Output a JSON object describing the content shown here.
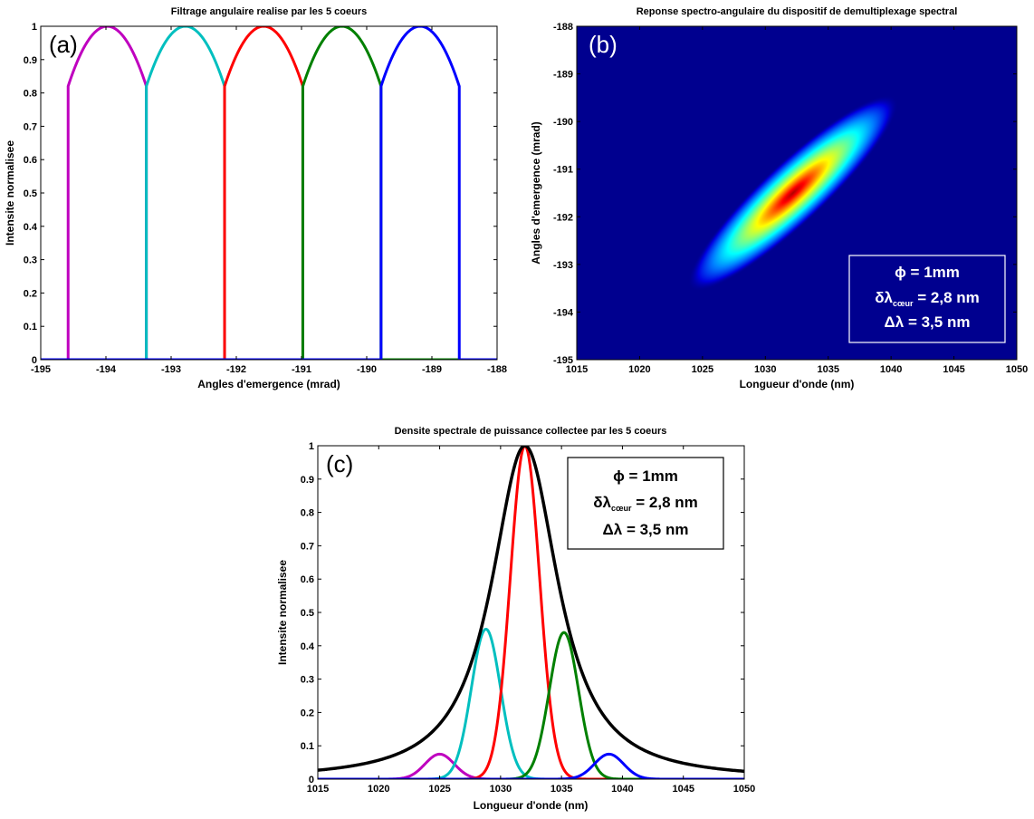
{
  "colors": {
    "magenta": "#bf00bf",
    "cyan": "#00bfbf",
    "red": "#ff0000",
    "green": "#008000",
    "blue": "#0000ff",
    "black": "#000000",
    "heatmap_bg": "#00008f"
  },
  "chart_data": [
    {
      "panel": "(a)",
      "type": "line",
      "title": "Filtrage angulaire realise par les 5 coeurs",
      "xlabel": "Angles d'emergence (mrad)",
      "ylabel": "Intensite normalisee",
      "xlim": [
        -195,
        -188
      ],
      "ylim": [
        0,
        1
      ],
      "xticks": [
        -195,
        -194,
        -193,
        -192,
        -191,
        -190,
        -189,
        -188
      ],
      "xtick_labels": [
        "-195",
        "-194",
        "-193",
        "-192",
        "-191",
        "-190",
        "-189",
        "-188"
      ],
      "yticks": [
        0,
        0.1,
        0.2,
        0.3,
        0.4,
        0.5,
        0.6,
        0.7,
        0.8,
        0.9,
        1
      ],
      "ytick_labels": [
        "0",
        "0.1",
        "0.2",
        "0.3",
        "0.4",
        "0.5",
        "0.6",
        "0.7",
        "0.8",
        "0.9",
        "1"
      ],
      "series": [
        {
          "color": "magenta",
          "x_start": -194.58,
          "x_end": -193.38,
          "peak_x": -193.98,
          "edge_value": 0.82,
          "peak_value": 1.0
        },
        {
          "color": "cyan",
          "x_start": -193.38,
          "x_end": -192.18,
          "peak_x": -192.78,
          "edge_value": 0.82,
          "peak_value": 1.0
        },
        {
          "color": "red",
          "x_start": -192.18,
          "x_end": -190.98,
          "peak_x": -191.58,
          "edge_value": 0.82,
          "peak_value": 1.0
        },
        {
          "color": "green",
          "x_start": -190.98,
          "x_end": -189.78,
          "peak_x": -190.38,
          "edge_value": 0.82,
          "peak_value": 1.0
        },
        {
          "color": "blue",
          "x_start": -189.78,
          "x_end": -188.58,
          "peak_x": -189.18,
          "edge_value": 0.82,
          "peak_value": 1.0
        }
      ],
      "grid": false
    },
    {
      "panel": "(b)",
      "type": "heatmap",
      "title": "Reponse spectro-angulaire du dispositif de demultiplexage spectral",
      "xlabel": "Longueur d'onde (nm)",
      "ylabel": "Angles d'emergence (mrad)",
      "xlim": [
        1015,
        1050
      ],
      "ylim": [
        -195,
        -188
      ],
      "xticks": [
        1015,
        1020,
        1025,
        1030,
        1035,
        1040,
        1045,
        1050
      ],
      "xtick_labels": [
        "1015",
        "1020",
        "1025",
        "1030",
        "1035",
        "1040",
        "1045",
        "1050"
      ],
      "yticks": [
        -188,
        -189,
        -190,
        -191,
        -192,
        -193,
        -194,
        -195
      ],
      "ytick_labels": [
        "-188",
        "-189",
        "-190",
        "-191",
        "-192",
        "-193",
        "-194",
        "-195"
      ],
      "peak": {
        "x": 1032.2,
        "y": -191.5
      },
      "direction": {
        "slope_mrad_per_nm": 0.245
      },
      "annotation": {
        "line1": "ϕ = 1mm",
        "line2_main": "δλ",
        "line2_sub": "cœur",
        "line2_rest": " = 2,8 nm",
        "line3": "Δλ = 3,5 nm"
      }
    },
    {
      "panel": "(c)",
      "type": "line",
      "title": "Densite spectrale de puissance collectee par les 5 coeurs",
      "xlabel": "Longueur d'onde (nm)",
      "ylabel": "Intensite normalisee",
      "xlim": [
        1015,
        1050
      ],
      "ylim": [
        0,
        1
      ],
      "xticks": [
        1015,
        1020,
        1025,
        1030,
        1035,
        1040,
        1045,
        1050
      ],
      "xtick_labels": [
        "1015",
        "1020",
        "1025",
        "1030",
        "1035",
        "1040",
        "1045",
        "1050"
      ],
      "yticks": [
        0,
        0.1,
        0.2,
        0.3,
        0.4,
        0.5,
        0.6,
        0.7,
        0.8,
        0.9,
        1
      ],
      "ytick_labels": [
        "0",
        "0.1",
        "0.2",
        "0.3",
        "0.4",
        "0.5",
        "0.6",
        "0.7",
        "0.8",
        "0.9",
        "1"
      ],
      "series": [
        {
          "color": "magenta",
          "center": 1025.0,
          "peak": 0.075,
          "sigma": 1.2
        },
        {
          "color": "cyan",
          "center": 1028.8,
          "peak": 0.45,
          "sigma": 1.2
        },
        {
          "color": "red",
          "center": 1032.0,
          "peak": 1.0,
          "sigma": 1.2
        },
        {
          "color": "green",
          "center": 1035.2,
          "peak": 0.44,
          "sigma": 1.2
        },
        {
          "color": "blue",
          "center": 1038.9,
          "peak": 0.075,
          "sigma": 1.2
        },
        {
          "color": "black",
          "center": 1032.0,
          "peak": 1.0,
          "hwhm": 3.6,
          "shape": "envelope"
        }
      ],
      "annotation": {
        "line1": "ϕ = 1mm",
        "line2_main": "δλ",
        "line2_sub": "cœur",
        "line2_rest": " = 2,8 nm",
        "line3": "Δλ = 3,5 nm"
      },
      "grid": false
    }
  ]
}
